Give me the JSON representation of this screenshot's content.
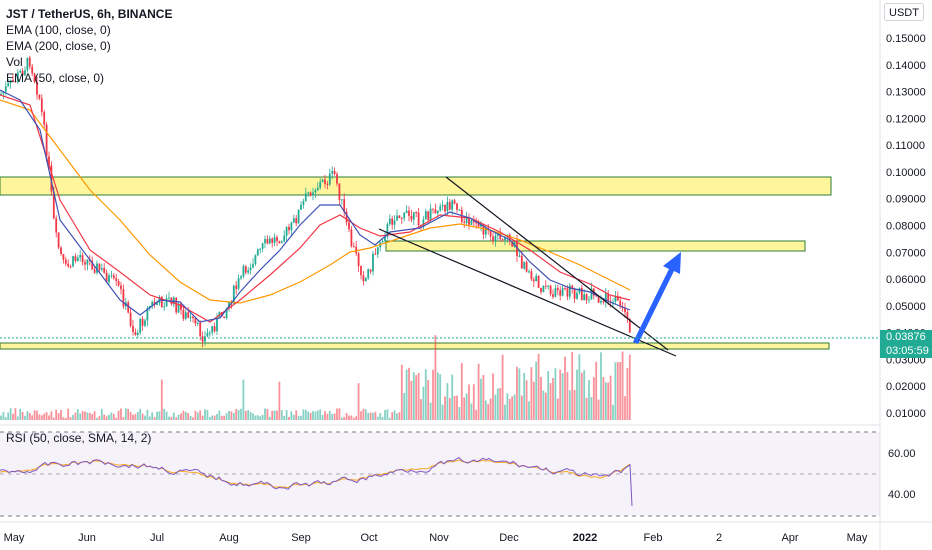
{
  "header": {
    "title": "JST / TetherUS, 6h, BINANCE",
    "indicators": [
      "EMA (100, close, 0)",
      "EMA (200, close, 0)",
      "Vol",
      "EMA (50, close, 0)"
    ],
    "currency": "USDT"
  },
  "price_axis": {
    "ticks": [
      "0.15000",
      "0.14000",
      "0.13000",
      "0.12000",
      "0.11000",
      "0.10000",
      "0.09000",
      "0.08000",
      "0.07000",
      "0.06000",
      "0.05000",
      "0.04000",
      "0.03000",
      "0.02000",
      "0.01000"
    ],
    "last_price": "0.03876",
    "countdown": "03:05:59"
  },
  "rsi": {
    "label": "RSI (50, close, SMA, 14, 2)",
    "ticks": [
      "60.00",
      "40.00"
    ]
  },
  "time_axis": {
    "labels": [
      "May",
      "Jun",
      "Jul",
      "Aug",
      "Sep",
      "Oct",
      "Nov",
      "Dec",
      "2022",
      "Feb",
      "2",
      "Apr",
      "May"
    ]
  },
  "colors": {
    "up": "#22ab94",
    "down": "#f23645",
    "zone": "#ffeb3b",
    "zone_border": "#2e7d32",
    "ema50": "#3f51b5",
    "ema100": "#f23645",
    "ema200": "#ff9800",
    "rsi": "#7e57c2",
    "rsi_ma": "#f9a825",
    "arrow": "#2962ff",
    "trendline": "#131722"
  },
  "chart_data": {
    "type": "line",
    "title": "JST / TetherUS, 6h, BINANCE",
    "y_range": [
      0.005,
      0.16
    ],
    "price_series": {
      "name": "JST / TetherUS",
      "x": [
        "May",
        "Jun",
        "Jul",
        "Aug",
        "Sep",
        "Oct",
        "Nov",
        "Dec",
        "2022",
        "Feb"
      ],
      "y": [
        0.125,
        0.06,
        0.038,
        0.05,
        0.09,
        0.065,
        0.085,
        0.07,
        0.05,
        0.038
      ]
    },
    "zones": [
      {
        "from": 0.092,
        "to": 0.098
      },
      {
        "from": 0.071,
        "to": 0.074
      },
      {
        "from": 0.034,
        "to": 0.036
      }
    ],
    "last_value": 0.03876,
    "rsi_range": [
      30,
      68
    ],
    "rsi_ticks": [
      60,
      40
    ]
  }
}
